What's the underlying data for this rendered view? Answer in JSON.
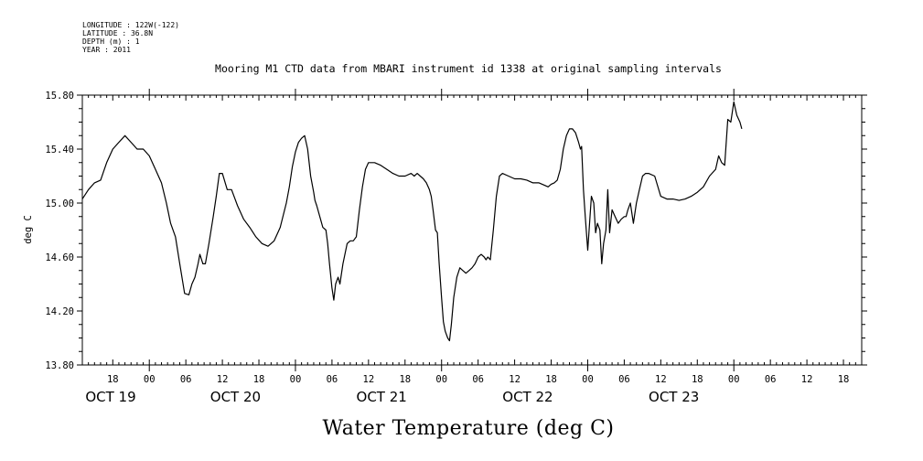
{
  "meta": {
    "longitude": "LONGITUDE : 122W(-122)",
    "latitude": "LATITUDE : 36.8N",
    "depth": "DEPTH (m) : 1",
    "year": "YEAR : 2011"
  },
  "chart_data": {
    "type": "line",
    "title": "Mooring M1 CTD data from MBARI instrument id 1338 at original sampling intervals",
    "xlabel": "Water Temperature (deg C)",
    "ylabel": "deg C",
    "ylim": [
      13.8,
      15.8
    ],
    "yticks": [
      "13.80",
      "14.20",
      "14.60",
      "15.00",
      "15.40",
      "15.80"
    ],
    "xlim_hours": [
      13,
      141
    ],
    "xticks": [
      {
        "h": 18,
        "label": "18"
      },
      {
        "h": 24,
        "label": "00"
      },
      {
        "h": 30,
        "label": "06"
      },
      {
        "h": 36,
        "label": "12"
      },
      {
        "h": 42,
        "label": "18"
      },
      {
        "h": 48,
        "label": "00"
      },
      {
        "h": 54,
        "label": "06"
      },
      {
        "h": 60,
        "label": "12"
      },
      {
        "h": 66,
        "label": "18"
      },
      {
        "h": 72,
        "label": "00"
      },
      {
        "h": 78,
        "label": "06"
      },
      {
        "h": 84,
        "label": "12"
      },
      {
        "h": 90,
        "label": "18"
      },
      {
        "h": 96,
        "label": "00"
      },
      {
        "h": 102,
        "label": "06"
      },
      {
        "h": 108,
        "label": "12"
      },
      {
        "h": 114,
        "label": "18"
      },
      {
        "h": 120,
        "label": "00"
      },
      {
        "h": 126,
        "label": "06"
      },
      {
        "h": 132,
        "label": "12"
      },
      {
        "h": 138,
        "label": "18"
      }
    ],
    "day_labels": [
      {
        "h": 13.5,
        "label": "OCT 19"
      },
      {
        "h": 34,
        "label": "OCT 20"
      },
      {
        "h": 58,
        "label": "OCT 21"
      },
      {
        "h": 82,
        "label": "OCT 22"
      },
      {
        "h": 106,
        "label": "OCT 23"
      }
    ],
    "grid": false,
    "series": [
      {
        "color": "#000000",
        "x": [
          13.0,
          14.0,
          15.0,
          16.0,
          17.0,
          18.0,
          19.0,
          20.0,
          21.0,
          22.0,
          23.0,
          24.0,
          25.0,
          26.0,
          26.8,
          27.5,
          28.3,
          29.0,
          29.8,
          30.5,
          31.0,
          31.5,
          32.0,
          32.3,
          32.8,
          33.2,
          33.8,
          34.5,
          35.0,
          35.5,
          36.0,
          36.8,
          37.5,
          38.5,
          39.5,
          40.5,
          41.5,
          42.5,
          43.5,
          44.5,
          45.5,
          46.5,
          47.0,
          47.5,
          48.0,
          48.5,
          49.0,
          49.5,
          50.0,
          50.5,
          51.0,
          51.2,
          51.5,
          52.0,
          52.5,
          53.0,
          53.3,
          53.6,
          54.0,
          54.3,
          54.6,
          55.0,
          55.3,
          55.8,
          56.5,
          57.0,
          57.5,
          58.0,
          58.5,
          59.0,
          59.5,
          60.0,
          61.0,
          62.0,
          63.0,
          64.0,
          65.0,
          66.0,
          67.0,
          67.5,
          68.0,
          68.5,
          69.0,
          69.5,
          70.0,
          70.3,
          70.6,
          71.0,
          71.3,
          71.6,
          72.0,
          72.3,
          72.6,
          73.0,
          73.3,
          73.6,
          74.0,
          74.5,
          75.0,
          75.5,
          76.0,
          76.5,
          77.0,
          77.5,
          78.0,
          78.5,
          79.0,
          79.3,
          79.6,
          80.0,
          80.5,
          81.0,
          81.5,
          82.0,
          83.0,
          84.0,
          85.0,
          86.0,
          87.0,
          88.0,
          89.0,
          89.5,
          90.0,
          90.5,
          91.0,
          91.5,
          92.0,
          92.5,
          93.0,
          93.5,
          94.0,
          94.5,
          94.8,
          95.0,
          95.3,
          95.6,
          96.0,
          96.3,
          96.6,
          97.0,
          97.3,
          97.6,
          98.0,
          98.3,
          98.6,
          99.0,
          99.3,
          99.6,
          100.0,
          100.5,
          101.0,
          101.5,
          102.0,
          102.3,
          102.6,
          103.0,
          103.5,
          104.0,
          104.5,
          105.0,
          105.5,
          106.0,
          107.0,
          108.0,
          109.0,
          110.0,
          111.0,
          112.0,
          113.0,
          114.0,
          115.0,
          116.0,
          117.0,
          117.5,
          118.0,
          118.5,
          119.0,
          119.5,
          120.0,
          120.5,
          121.0,
          121.3
        ],
        "y": [
          15.03,
          15.1,
          15.15,
          15.17,
          15.3,
          15.4,
          15.45,
          15.5,
          15.45,
          15.4,
          15.4,
          15.35,
          15.25,
          15.15,
          15.0,
          14.85,
          14.75,
          14.55,
          14.33,
          14.32,
          14.4,
          14.45,
          14.55,
          14.62,
          14.55,
          14.55,
          14.7,
          14.9,
          15.05,
          15.22,
          15.22,
          15.1,
          15.1,
          14.98,
          14.88,
          14.82,
          14.75,
          14.7,
          14.68,
          14.72,
          14.82,
          15.0,
          15.12,
          15.27,
          15.38,
          15.45,
          15.48,
          15.5,
          15.4,
          15.2,
          15.08,
          15.02,
          14.98,
          14.9,
          14.82,
          14.8,
          14.7,
          14.55,
          14.37,
          14.28,
          14.4,
          14.45,
          14.4,
          14.55,
          14.7,
          14.72,
          14.72,
          14.75,
          14.95,
          15.12,
          15.25,
          15.3,
          15.3,
          15.28,
          15.25,
          15.22,
          15.2,
          15.2,
          15.22,
          15.2,
          15.22,
          15.2,
          15.18,
          15.15,
          15.1,
          15.05,
          14.95,
          14.8,
          14.78,
          14.55,
          14.3,
          14.12,
          14.05,
          14.0,
          13.98,
          14.1,
          14.3,
          14.45,
          14.52,
          14.5,
          14.48,
          14.5,
          14.52,
          14.55,
          14.6,
          14.62,
          14.6,
          14.58,
          14.6,
          14.58,
          14.8,
          15.05,
          15.2,
          15.22,
          15.2,
          15.18,
          15.18,
          15.17,
          15.15,
          15.15,
          15.13,
          15.12,
          15.14,
          15.15,
          15.17,
          15.25,
          15.4,
          15.5,
          15.55,
          15.55,
          15.52,
          15.45,
          15.4,
          15.42,
          15.1,
          14.9,
          14.65,
          14.85,
          15.05,
          15.0,
          14.78,
          14.85,
          14.8,
          14.55,
          14.7,
          14.8,
          15.1,
          14.78,
          14.95,
          14.9,
          14.85,
          14.88,
          14.9,
          14.9,
          14.95,
          15.0,
          14.85,
          15.0,
          15.1,
          15.2,
          15.22,
          15.22,
          15.2,
          15.05,
          15.03,
          15.03,
          15.02,
          15.03,
          15.05,
          15.08,
          15.12,
          15.2,
          15.25,
          15.35,
          15.3,
          15.28,
          15.62,
          15.6,
          15.75,
          15.65,
          15.6,
          15.55
        ]
      }
    ]
  }
}
